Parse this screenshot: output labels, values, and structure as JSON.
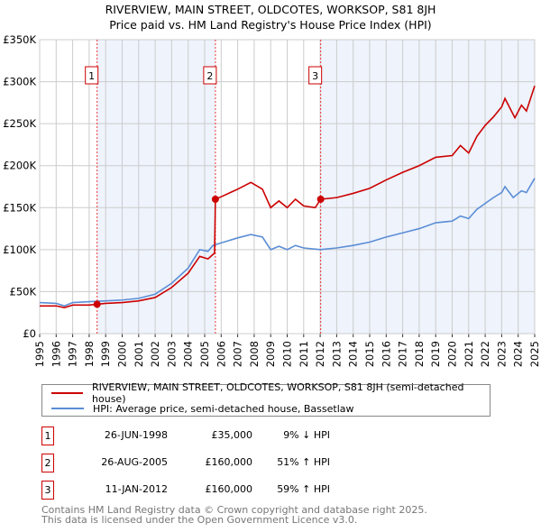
{
  "chart_data": {
    "type": "line",
    "title": "RIVERVIEW, MAIN STREET, OLDCOTES, WORKSOP, S81 8JH",
    "subtitle": "Price paid vs. HM Land Registry's House Price Index (HPI)",
    "xlim": [
      1995,
      2025
    ],
    "ylim": [
      0,
      350000
    ],
    "x_ticks": [
      "1995",
      "1996",
      "1997",
      "1998",
      "1999",
      "2000",
      "2001",
      "2002",
      "2003",
      "2004",
      "2005",
      "2006",
      "2007",
      "2008",
      "2009",
      "2010",
      "2011",
      "2012",
      "2013",
      "2014",
      "2015",
      "2016",
      "2017",
      "2018",
      "2019",
      "2020",
      "2021",
      "2022",
      "2023",
      "2024",
      "2025"
    ],
    "y_ticks": [
      {
        "v": 0,
        "label": "£0"
      },
      {
        "v": 50000,
        "label": "£50K"
      },
      {
        "v": 100000,
        "label": "£100K"
      },
      {
        "v": 150000,
        "label": "£150K"
      },
      {
        "v": 200000,
        "label": "£200K"
      },
      {
        "v": 250000,
        "label": "£250K"
      },
      {
        "v": 300000,
        "label": "£300K"
      },
      {
        "v": 350000,
        "label": "£350K"
      }
    ],
    "grid": true,
    "colors": {
      "property": "#cc0000",
      "hpi": "#5b8ed6",
      "shade": "#eef3fc"
    },
    "series": [
      {
        "name": "RIVERVIEW, MAIN STREET, OLDCOTES, WORKSOP, S81 8JH (semi-detached house)",
        "key": "property",
        "x": [
          1995,
          1996,
          1996.5,
          1997,
          1998,
          1998.48,
          1999,
          2000,
          2001,
          2002,
          2003,
          2004,
          2004.7,
          2005.2,
          2005.6,
          2005.65,
          2006,
          2007,
          2007.8,
          2008.5,
          2009,
          2009.5,
          2010,
          2010.5,
          2011,
          2011.7,
          2012.03,
          2013,
          2014,
          2015,
          2016,
          2017,
          2018,
          2019,
          2020,
          2020.5,
          2021,
          2021.5,
          2022,
          2022.5,
          2023,
          2023.2,
          2023.8,
          2024.2,
          2024.5,
          2025
        ],
        "y": [
          33000,
          33000,
          31000,
          34000,
          34000,
          35000,
          36000,
          37000,
          39000,
          43000,
          55000,
          72000,
          92000,
          89000,
          96000,
          160000,
          163000,
          172000,
          180000,
          172000,
          150000,
          158000,
          150000,
          160000,
          152000,
          150000,
          160000,
          162000,
          167000,
          173000,
          183000,
          192000,
          200000,
          210000,
          212000,
          224000,
          215000,
          235000,
          248000,
          258000,
          270000,
          280000,
          257000,
          272000,
          265000,
          295000
        ]
      },
      {
        "name": "HPI: Average price, semi-detached house, Bassetlaw",
        "key": "hpi",
        "x": [
          1995,
          1996,
          1996.5,
          1997,
          1998,
          1999,
          2000,
          2001,
          2002,
          2003,
          2004,
          2004.7,
          2005.2,
          2005.5,
          2006,
          2007,
          2007.8,
          2008.5,
          2009,
          2009.5,
          2010,
          2010.5,
          2011,
          2012,
          2013,
          2014,
          2015,
          2016,
          2017,
          2018,
          2019,
          2020,
          2020.5,
          2021,
          2021.5,
          2022,
          2022.5,
          2023,
          2023.2,
          2023.7,
          2024.2,
          2024.5,
          2025
        ],
        "y": [
          37000,
          36000,
          33000,
          37000,
          38000,
          39000,
          40000,
          42000,
          47000,
          60000,
          78000,
          100000,
          98000,
          105000,
          108000,
          114000,
          118000,
          115000,
          100000,
          104000,
          100000,
          105000,
          102000,
          100000,
          102000,
          105000,
          109000,
          115000,
          120000,
          125000,
          132000,
          134000,
          140000,
          137000,
          148000,
          155000,
          162000,
          168000,
          175000,
          162000,
          170000,
          168000,
          185000
        ]
      }
    ],
    "sales": [
      {
        "num": "1",
        "x": 1998.48,
        "y": 35000,
        "date": "26-JUN-1998",
        "price": "£35,000",
        "hpi": "9% ↓ HPI"
      },
      {
        "num": "2",
        "x": 2005.65,
        "y": 160000,
        "date": "26-AUG-2005",
        "price": "£160,000",
        "hpi": "51% ↑ HPI"
      },
      {
        "num": "3",
        "x": 2012.03,
        "y": 160000,
        "date": "11-JAN-2012",
        "price": "£160,000",
        "hpi": "59% ↑ HPI"
      }
    ],
    "legend_position": "below"
  },
  "footer": {
    "line1": "Contains HM Land Registry data © Crown copyright and database right 2025.",
    "line2": "This data is licensed under the Open Government Licence v3.0."
  }
}
